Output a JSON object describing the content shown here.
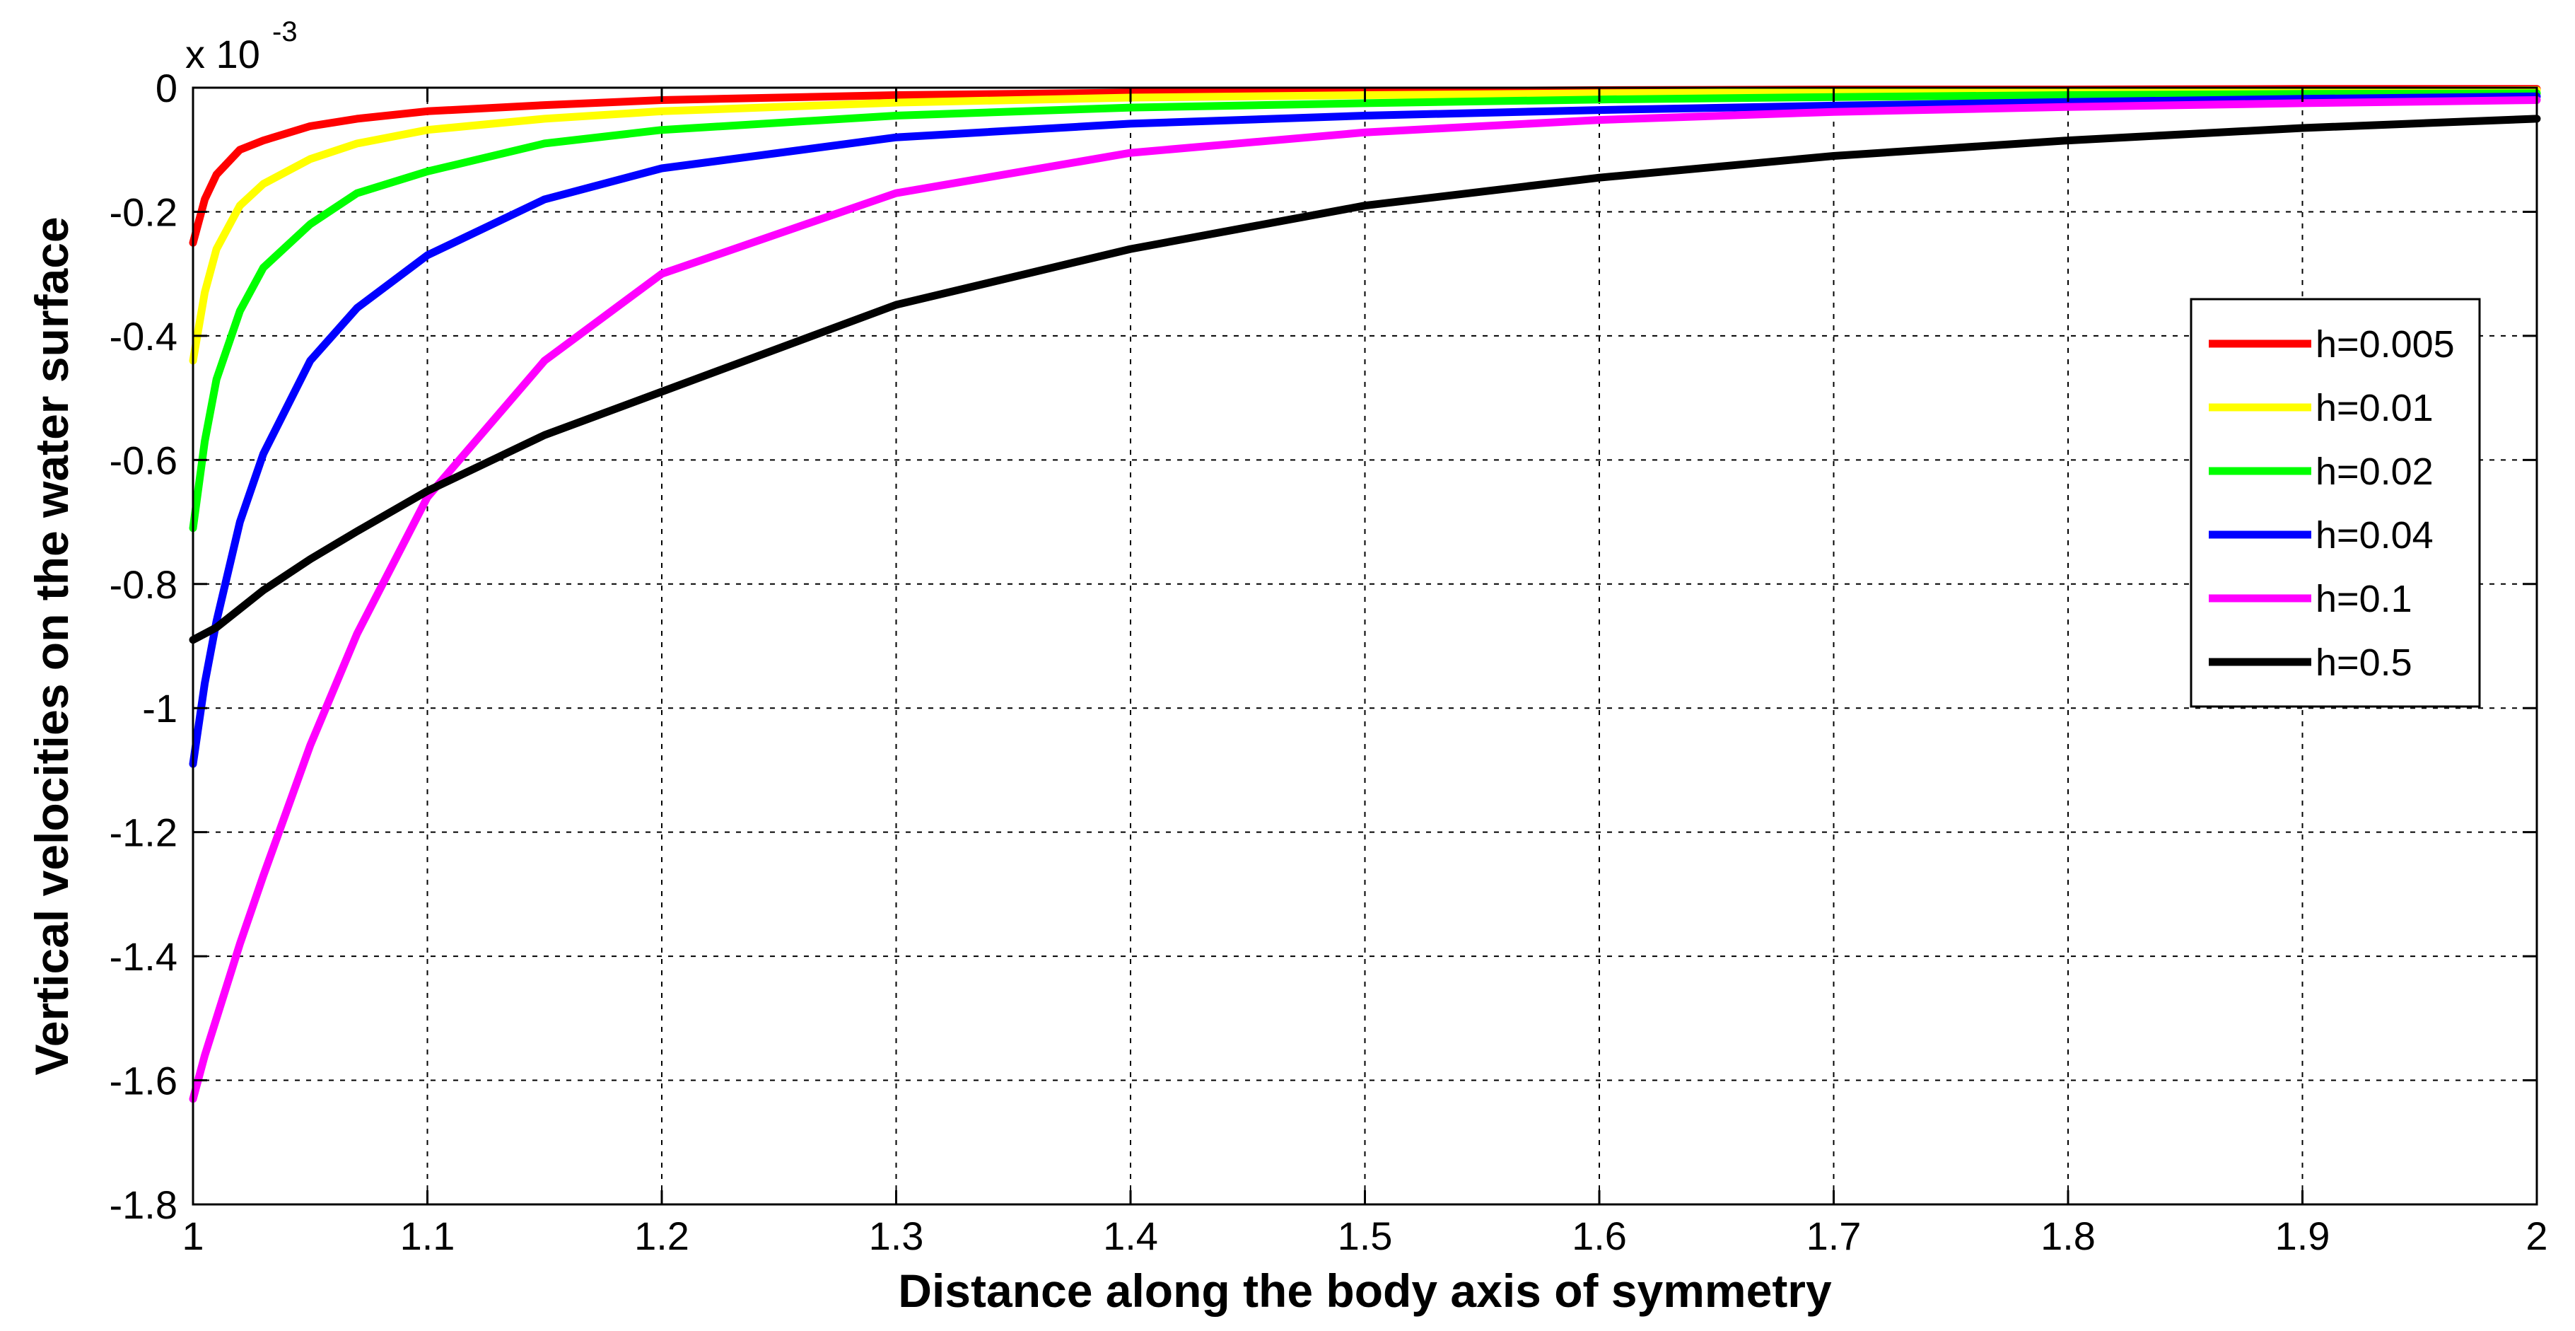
{
  "chart_data": {
    "type": "line",
    "title": "",
    "xlabel": "Distance along the body axis of symmetry",
    "ylabel": "Vertical velocities on the water surface",
    "exponent_label": {
      "base": "x 10",
      "exp": "-3"
    },
    "xlim": [
      1,
      2
    ],
    "ylim": [
      -1.8,
      0
    ],
    "xticks": [
      1,
      1.1,
      1.2,
      1.3,
      1.4,
      1.5,
      1.6,
      1.7,
      1.8,
      1.9,
      2
    ],
    "xtick_labels": [
      "1",
      "1.1",
      "1.2",
      "1.3",
      "1.4",
      "1.5",
      "1.6",
      "1.7",
      "1.8",
      "1.9",
      "2"
    ],
    "yticks": [
      0,
      -0.2,
      -0.4,
      -0.6,
      -0.8,
      -1,
      -1.2,
      -1.4,
      -1.6,
      -1.8
    ],
    "ytick_labels": [
      "0",
      "-0.2",
      "-0.4",
      "-0.6",
      "-0.8",
      "-1",
      "-1.2",
      "-1.4",
      "-1.6",
      "-1.8"
    ],
    "grid": true,
    "legend_position": "right",
    "x": [
      1,
      1.005,
      1.01,
      1.02,
      1.03,
      1.05,
      1.07,
      1.1,
      1.15,
      1.2,
      1.3,
      1.4,
      1.5,
      1.6,
      1.7,
      1.8,
      1.9,
      2
    ],
    "series": [
      {
        "name": "h=0.005",
        "color": "#ff0000",
        "values": [
          -0.25,
          -0.18,
          -0.14,
          -0.1,
          -0.085,
          -0.062,
          -0.05,
          -0.038,
          -0.028,
          -0.02,
          -0.012,
          -0.008,
          -0.006,
          -0.004,
          -0.003,
          -0.003,
          -0.002,
          -0.002
        ]
      },
      {
        "name": "h=0.01",
        "color": "#ffff00",
        "values": [
          -0.44,
          -0.33,
          -0.26,
          -0.19,
          -0.155,
          -0.115,
          -0.09,
          -0.068,
          -0.05,
          -0.038,
          -0.024,
          -0.016,
          -0.012,
          -0.009,
          -0.007,
          -0.006,
          -0.005,
          -0.004
        ]
      },
      {
        "name": "h=0.02",
        "color": "#00ff00",
        "values": [
          -0.71,
          -0.57,
          -0.47,
          -0.36,
          -0.29,
          -0.22,
          -0.17,
          -0.135,
          -0.09,
          -0.068,
          -0.045,
          -0.032,
          -0.025,
          -0.019,
          -0.015,
          -0.012,
          -0.01,
          -0.009
        ]
      },
      {
        "name": "h=0.04",
        "color": "#0000ff",
        "values": [
          -1.09,
          -0.96,
          -0.86,
          -0.7,
          -0.59,
          -0.44,
          -0.355,
          -0.27,
          -0.18,
          -0.13,
          -0.08,
          -0.058,
          -0.045,
          -0.036,
          -0.029,
          -0.023,
          -0.018,
          -0.014
        ]
      },
      {
        "name": "h=0.1",
        "color": "#ff00ff",
        "values": [
          -1.63,
          -1.56,
          -1.5,
          -1.38,
          -1.27,
          -1.06,
          -0.88,
          -0.66,
          -0.44,
          -0.3,
          -0.17,
          -0.105,
          -0.072,
          -0.052,
          -0.039,
          -0.031,
          -0.025,
          -0.02
        ]
      },
      {
        "name": "h=0.5",
        "color": "#000000",
        "values": [
          -0.89,
          -0.88,
          -0.87,
          -0.84,
          -0.81,
          -0.76,
          -0.715,
          -0.65,
          -0.56,
          -0.49,
          -0.35,
          -0.26,
          -0.19,
          -0.145,
          -0.11,
          -0.085,
          -0.065,
          -0.05
        ]
      }
    ]
  }
}
